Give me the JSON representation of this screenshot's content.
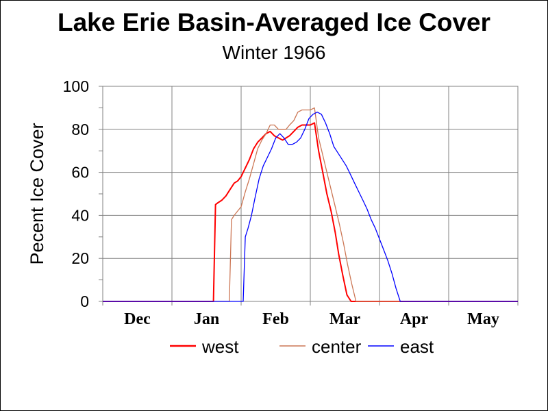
{
  "chart_data": {
    "type": "line",
    "title": "Lake Erie Basin-Averaged Ice Cover",
    "subtitle": "Winter 1966",
    "ylabel": "Pecent Ice Cover",
    "xlabel": "",
    "ylim": [
      0,
      100
    ],
    "yticks": [
      0,
      20,
      40,
      60,
      80,
      100
    ],
    "categories": [
      "Dec",
      "Jan",
      "Feb",
      "Mar",
      "Apr",
      "May"
    ],
    "grid": true,
    "legend_position": "bottom",
    "series": [
      {
        "name": "west",
        "color": "#ff0000",
        "x": [
          0,
          1.6,
          1.63,
          1.67,
          1.72,
          1.78,
          1.84,
          1.9,
          1.95,
          2.0,
          2.06,
          2.12,
          2.18,
          2.24,
          2.3,
          2.36,
          2.42,
          2.48,
          2.54,
          2.6,
          2.65,
          2.7,
          2.76,
          2.82,
          2.88,
          2.94,
          3.0,
          3.06,
          3.12,
          3.18,
          3.24,
          3.3,
          3.36,
          3.41,
          3.47,
          3.53,
          3.59,
          3.65,
          3.71,
          3.77,
          3.82,
          3.86,
          3.9,
          4.5,
          6.0
        ],
        "y": [
          0,
          0,
          45,
          46,
          47,
          49,
          52,
          55,
          56,
          58,
          62,
          66,
          71,
          74,
          76,
          78,
          79,
          77,
          76,
          75,
          76,
          77,
          79,
          81,
          82,
          82,
          82,
          83,
          70,
          60,
          50,
          42,
          32,
          22,
          12,
          3,
          0,
          0,
          0,
          0,
          0,
          0,
          0,
          0,
          0
        ]
      },
      {
        "name": "center",
        "color": "#cc7755",
        "x": [
          0,
          1.83,
          1.86,
          1.9,
          1.95,
          2.0,
          2.06,
          2.12,
          2.18,
          2.24,
          2.3,
          2.36,
          2.42,
          2.48,
          2.54,
          2.6,
          2.65,
          2.7,
          2.76,
          2.82,
          2.88,
          2.94,
          3.0,
          3.06,
          3.12,
          3.18,
          3.24,
          3.3,
          3.36,
          3.42,
          3.48,
          3.54,
          3.6,
          3.66,
          3.72,
          3.78,
          3.84,
          3.9,
          4.5,
          6.0
        ],
        "y": [
          0,
          0,
          38,
          40,
          42,
          44,
          51,
          57,
          64,
          71,
          75,
          78,
          82,
          82,
          80,
          80,
          80,
          82,
          84,
          88,
          89,
          89,
          89,
          90,
          76,
          68,
          60,
          52,
          44,
          36,
          27,
          17,
          8,
          0,
          0,
          0,
          0,
          0,
          0,
          0
        ]
      },
      {
        "name": "east",
        "color": "#0000ff",
        "x": [
          0,
          2.03,
          2.06,
          2.1,
          2.15,
          2.2,
          2.26,
          2.32,
          2.38,
          2.44,
          2.5,
          2.56,
          2.62,
          2.68,
          2.74,
          2.8,
          2.86,
          2.92,
          2.98,
          3.04,
          3.1,
          3.16,
          3.22,
          3.28,
          3.34,
          3.4,
          3.46,
          3.52,
          3.58,
          3.64,
          3.7,
          3.76,
          3.82,
          3.88,
          3.94,
          4.0,
          4.06,
          4.12,
          4.18,
          4.24,
          4.3,
          4.5,
          6.0
        ],
        "y": [
          0,
          0,
          30,
          34,
          40,
          48,
          57,
          63,
          67,
          71,
          76,
          78,
          76,
          73,
          73,
          74,
          76,
          80,
          85,
          87,
          88,
          87,
          83,
          78,
          72,
          69,
          66,
          63,
          59,
          55,
          51,
          47,
          43,
          38,
          34,
          29,
          24,
          19,
          13,
          6,
          0,
          0,
          0
        ]
      }
    ]
  }
}
